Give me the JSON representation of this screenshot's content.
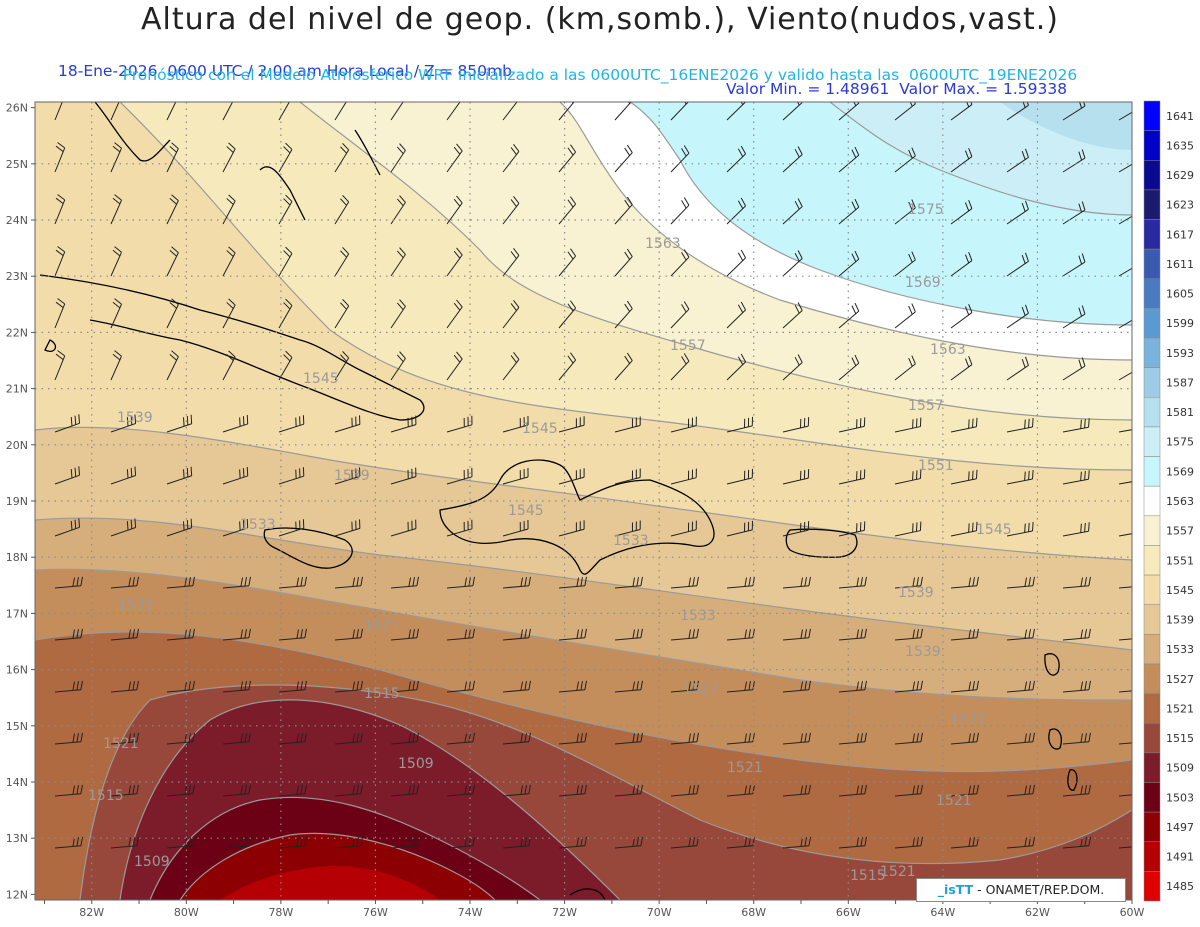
{
  "header": {
    "title": "Altura del nivel de geop. (km,somb.), Viento(nudos,vast.)",
    "subtitle_left": "18-Ene-2026  0600 UTC / 2:00 am Hora Local / Z = 850mb",
    "subtitle_right": "Valor Min. = 1.48961  Valor Max. = 1.59338",
    "run_info": "Pronóstico con el Modelo Atmosferico WRF inicializado a las 0600UTC_16ENE2026 y valido hasta las  0600UTC_19ENE2026"
  },
  "axes": {
    "lat_labels": [
      "26N",
      "25N",
      "24N",
      "23N",
      "22N",
      "21N",
      "20N",
      "19N",
      "18N",
      "17N",
      "16N",
      "15N",
      "14N",
      "13N",
      "12N"
    ],
    "lon_labels": [
      "82W",
      "80W",
      "78W",
      "76W",
      "74W",
      "72W",
      "70W",
      "68W",
      "66W",
      "64W",
      "62W",
      "60W"
    ]
  },
  "colorbar": {
    "levels": [
      "1641",
      "1635",
      "1629",
      "1623",
      "1617",
      "1611",
      "1605",
      "1599",
      "1593",
      "1587",
      "1581",
      "1575",
      "1569",
      "1563",
      "1557",
      "1551",
      "1545",
      "1539",
      "1533",
      "1527",
      "1521",
      "1515",
      "1509",
      "1503",
      "1497",
      "1491",
      "1485"
    ],
    "colors": [
      "#0000ff",
      "#0000c8",
      "#0a0a90",
      "#1a1a6e",
      "#2a2aa0",
      "#3a5ab0",
      "#4a7ac0",
      "#5a9ad0",
      "#7ab4dc",
      "#9ccce6",
      "#b6e0ee",
      "#cceef6",
      "#c6f6fc",
      "#ffffff",
      "#f8f2d2",
      "#f6eabc",
      "#f2dcaa",
      "#e6c896",
      "#d6ae7c",
      "#c48e5c",
      "#b06a42",
      "#98483a",
      "#7c1c2a",
      "#6c0014",
      "#8c0004",
      "#b40004",
      "#e00000"
    ]
  },
  "contour_labels": [
    "1575",
    "1563",
    "1569",
    "1557",
    "1563",
    "1545",
    "1557",
    "1539",
    "1545",
    "1551",
    "1539",
    "1545",
    "1533",
    "1539",
    "1545",
    "1527",
    "1533",
    "1539",
    "1521",
    "1533",
    "1527",
    "1515",
    "1521",
    "1521",
    "1527",
    "1509",
    "1521",
    "1515",
    "1521",
    "1509",
    "1515"
  ],
  "credit": {
    "logo": "_isTT",
    "text": " - ONAMET/REP.DOM."
  }
}
